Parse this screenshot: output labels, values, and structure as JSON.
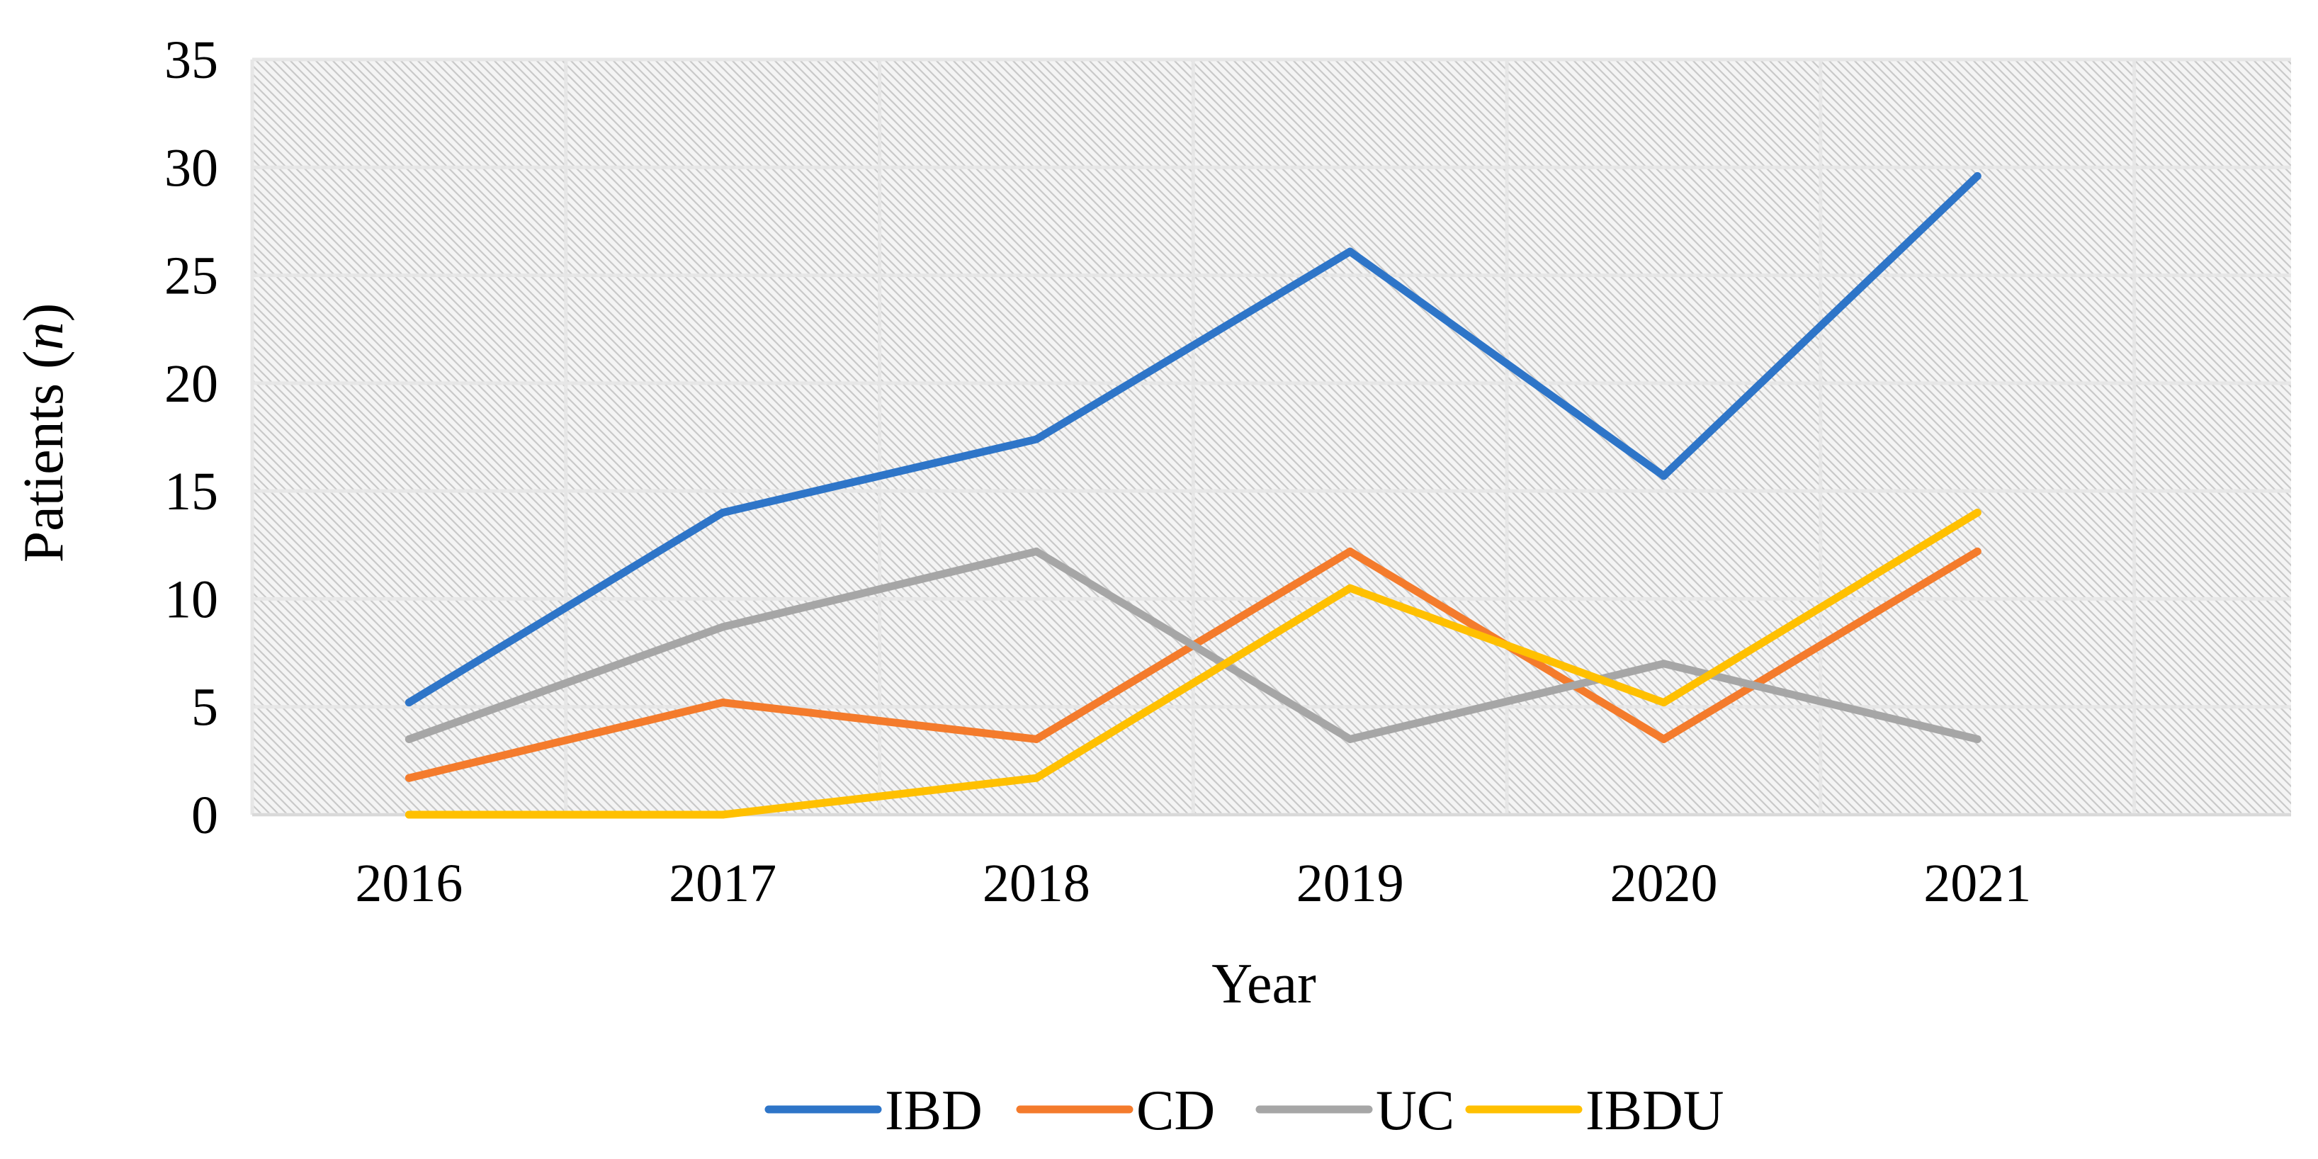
{
  "chart_data": {
    "type": "line",
    "title": "",
    "xlabel": "Year",
    "ylabel_prefix": "Patients (",
    "ylabel_var": "n",
    "ylabel_suffix": ")",
    "categories": [
      "2016",
      "2017",
      "2018",
      "2019",
      "2020",
      "2021"
    ],
    "ylim": [
      0,
      35
    ],
    "yticks": [
      0,
      5,
      10,
      15,
      20,
      25,
      30,
      35
    ],
    "grid": true,
    "legend_position": "bottom",
    "series": [
      {
        "name": "IBD",
        "color": "#2E75C8",
        "values": [
          5.2,
          14.0,
          17.4,
          26.1,
          15.7,
          29.6
        ]
      },
      {
        "name": "CD",
        "color": "#F47B2C",
        "values": [
          1.7,
          5.2,
          3.5,
          12.2,
          3.5,
          12.2
        ]
      },
      {
        "name": "UC",
        "color": "#A6A6A6",
        "values": [
          3.5,
          8.7,
          12.2,
          3.5,
          7.0,
          3.5
        ]
      },
      {
        "name": "IBDU",
        "color": "#FFC000",
        "values": [
          0.0,
          0.0,
          1.7,
          10.5,
          5.2,
          14.0
        ]
      }
    ]
  }
}
